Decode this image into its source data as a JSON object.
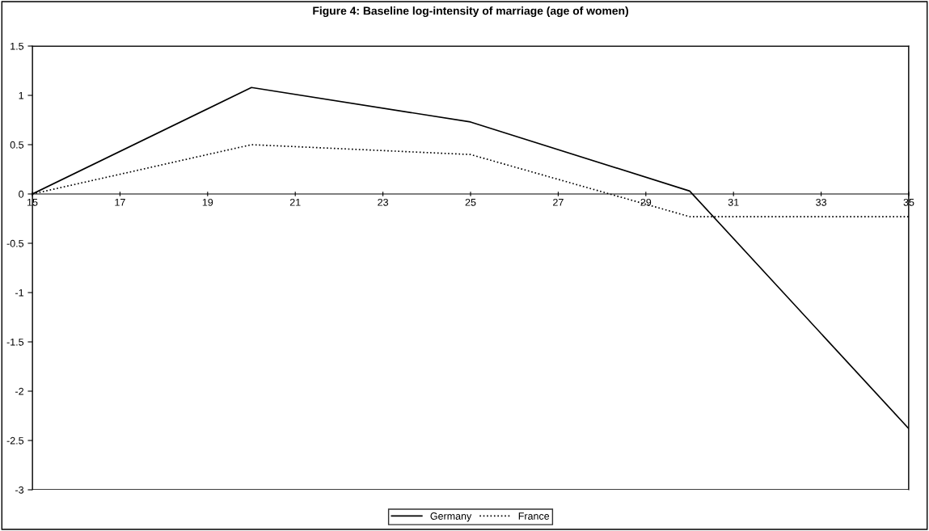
{
  "chart_data": {
    "type": "line",
    "title": "Figure 4: Baseline log-intensity of marriage (age of women)",
    "x": [
      15,
      20,
      25,
      30,
      35
    ],
    "series": [
      {
        "name": "Germany",
        "color": "#000000",
        "line_style": "solid",
        "values": [
          0,
          1.08,
          0.73,
          0.03,
          -2.38
        ]
      },
      {
        "name": "France",
        "color": "#000000",
        "line_style": "dotted",
        "values": [
          0,
          0.5,
          0.4,
          -0.23,
          -0.23
        ]
      }
    ],
    "xlim": [
      15,
      35
    ],
    "xticks": [
      15,
      17,
      19,
      21,
      23,
      25,
      27,
      29,
      31,
      33,
      35
    ],
    "ylim": [
      -3,
      1.5
    ],
    "yticks": [
      -3,
      -2.5,
      -2,
      -1.5,
      -1,
      -0.5,
      0,
      0.5,
      1,
      1.5
    ],
    "grid": false,
    "legend": "bottom",
    "marker": "none"
  }
}
